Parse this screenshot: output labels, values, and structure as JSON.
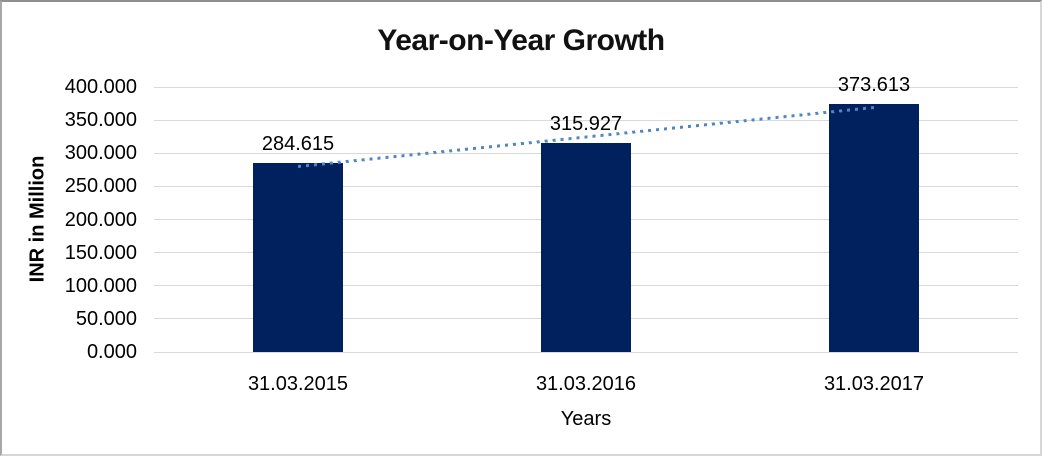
{
  "chart_data": {
    "type": "bar",
    "title": "Year-on-Year Growth",
    "xlabel": "Years",
    "ylabel": "INR in Million",
    "categories": [
      "31.03.2015",
      "31.03.2016",
      "31.03.2017"
    ],
    "values": [
      284.615,
      315.927,
      373.613
    ],
    "value_labels": [
      "284.615",
      "315.927",
      "373.613"
    ],
    "yticks": [
      {
        "value": 0,
        "label": "0.000"
      },
      {
        "value": 50,
        "label": "50.000"
      },
      {
        "value": 100,
        "label": "100.000"
      },
      {
        "value": 150,
        "label": "150.000"
      },
      {
        "value": 200,
        "label": "200.000"
      },
      {
        "value": 250,
        "label": "250.000"
      },
      {
        "value": 300,
        "label": "300.000"
      },
      {
        "value": 350,
        "label": "350.000"
      },
      {
        "value": 400,
        "label": "400.000"
      }
    ],
    "ylim": [
      0,
      400
    ],
    "grid": true,
    "legend": false,
    "trendline": {
      "type": "linear",
      "style": "dotted"
    },
    "colors": {
      "bar": "#00215e",
      "gridline": "#d9d9d9",
      "trendline": "#4f86c6",
      "text": "#000000"
    }
  }
}
